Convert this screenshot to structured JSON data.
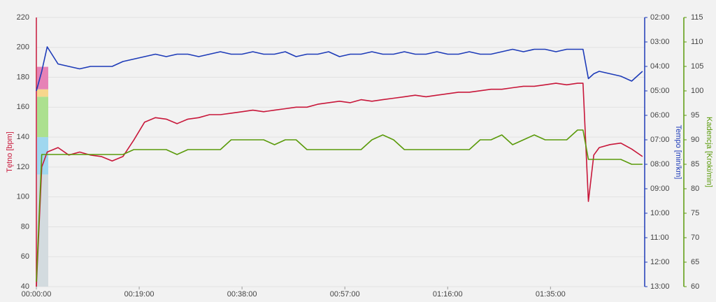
{
  "chart_data": {
    "type": "line",
    "x": [
      0,
      1,
      2,
      4,
      6,
      8,
      10,
      12,
      14,
      16,
      18,
      20,
      22,
      24,
      26,
      28,
      30,
      32,
      34,
      36,
      38,
      40,
      42,
      44,
      46,
      48,
      50,
      52,
      54,
      56,
      58,
      60,
      62,
      64,
      66,
      68,
      70,
      72,
      74,
      76,
      78,
      80,
      82,
      84,
      86,
      88,
      90,
      92,
      94,
      96,
      98,
      100,
      101,
      102,
      103,
      104,
      106,
      108,
      110,
      112
    ],
    "xlim": [
      0,
      112.4
    ],
    "xticks": [
      {
        "value": 0,
        "label": "00:00:00"
      },
      {
        "value": 19,
        "label": "00:19:00"
      },
      {
        "value": 38,
        "label": "00:38:00"
      },
      {
        "value": 57,
        "label": "00:57:00"
      },
      {
        "value": 76,
        "label": "01:16:00"
      },
      {
        "value": 95,
        "label": "01:35:00"
      }
    ],
    "ylim": [
      40,
      220
    ],
    "yticks": [
      40,
      60,
      80,
      100,
      120,
      140,
      160,
      180,
      200,
      220
    ],
    "y2lim": [
      13,
      2
    ],
    "y2ticks": [
      {
        "value": 2,
        "label": "02:00"
      },
      {
        "value": 3,
        "label": "03:00"
      },
      {
        "value": 4,
        "label": "04:00"
      },
      {
        "value": 5,
        "label": "05:00"
      },
      {
        "value": 6,
        "label": "06:00"
      },
      {
        "value": 7,
        "label": "07:00"
      },
      {
        "value": 8,
        "label": "08:00"
      },
      {
        "value": 9,
        "label": "09:00"
      },
      {
        "value": 10,
        "label": "10:00"
      },
      {
        "value": 11,
        "label": "11:00"
      },
      {
        "value": 12,
        "label": "12:00"
      },
      {
        "value": 13,
        "label": "13:00"
      }
    ],
    "y3lim": [
      60,
      115
    ],
    "y3ticks": [
      60,
      65,
      70,
      75,
      80,
      85,
      90,
      95,
      100,
      105,
      110,
      115
    ],
    "grid": true,
    "hr_zones": [
      {
        "from": 40,
        "to": 115,
        "color": "#d3dbdf"
      },
      {
        "from": 115,
        "to": 140,
        "color": "#9fd7ef"
      },
      {
        "from": 140,
        "to": 167,
        "color": "#ace08f"
      },
      {
        "from": 167,
        "to": 172,
        "color": "#f7d68c"
      },
      {
        "from": 172,
        "to": 187,
        "color": "#e682b6"
      }
    ],
    "series": [
      {
        "name": "Tętno [bpm]",
        "color": "#c8173a",
        "axis": "y",
        "values": [
          40,
          120,
          130,
          133,
          128,
          130,
          128,
          127,
          124,
          127,
          138,
          150,
          153,
          152,
          149,
          152,
          153,
          155,
          155,
          156,
          157,
          158,
          157,
          158,
          159,
          160,
          160,
          162,
          163,
          164,
          163,
          165,
          164,
          165,
          166,
          167,
          168,
          167,
          168,
          169,
          170,
          170,
          171,
          172,
          172,
          173,
          174,
          174,
          175,
          176,
          175,
          176,
          176,
          97,
          128,
          133,
          135,
          136,
          132,
          127
        ]
      },
      {
        "name": "Tempo [min/km]",
        "color": "#1d3bb8",
        "axis": "y2",
        "values": [
          5.0,
          4.2,
          3.2,
          3.9,
          4.0,
          4.1,
          4.0,
          4.0,
          4.0,
          3.8,
          3.7,
          3.6,
          3.5,
          3.6,
          3.5,
          3.5,
          3.6,
          3.5,
          3.4,
          3.5,
          3.5,
          3.4,
          3.5,
          3.5,
          3.4,
          3.6,
          3.5,
          3.5,
          3.4,
          3.6,
          3.5,
          3.5,
          3.4,
          3.5,
          3.5,
          3.4,
          3.5,
          3.5,
          3.4,
          3.5,
          3.5,
          3.4,
          3.5,
          3.5,
          3.4,
          3.3,
          3.4,
          3.3,
          3.3,
          3.4,
          3.3,
          3.3,
          3.3,
          4.5,
          4.3,
          4.2,
          4.3,
          4.4,
          4.6,
          4.2
        ]
      },
      {
        "name": "Kadencja [Kroki/min]",
        "color": "#5a9a0a",
        "axis": "y3",
        "values": [
          61,
          87,
          87,
          87,
          87,
          87,
          87,
          87,
          87,
          87,
          88,
          88,
          88,
          88,
          87,
          88,
          88,
          88,
          88,
          90,
          90,
          90,
          90,
          89,
          90,
          90,
          88,
          88,
          88,
          88,
          88,
          88,
          90,
          91,
          90,
          88,
          88,
          88,
          88,
          88,
          88,
          88,
          90,
          90,
          91,
          89,
          90,
          91,
          90,
          90,
          90,
          92,
          92,
          86,
          86,
          86,
          86,
          86,
          85,
          85
        ]
      }
    ]
  }
}
